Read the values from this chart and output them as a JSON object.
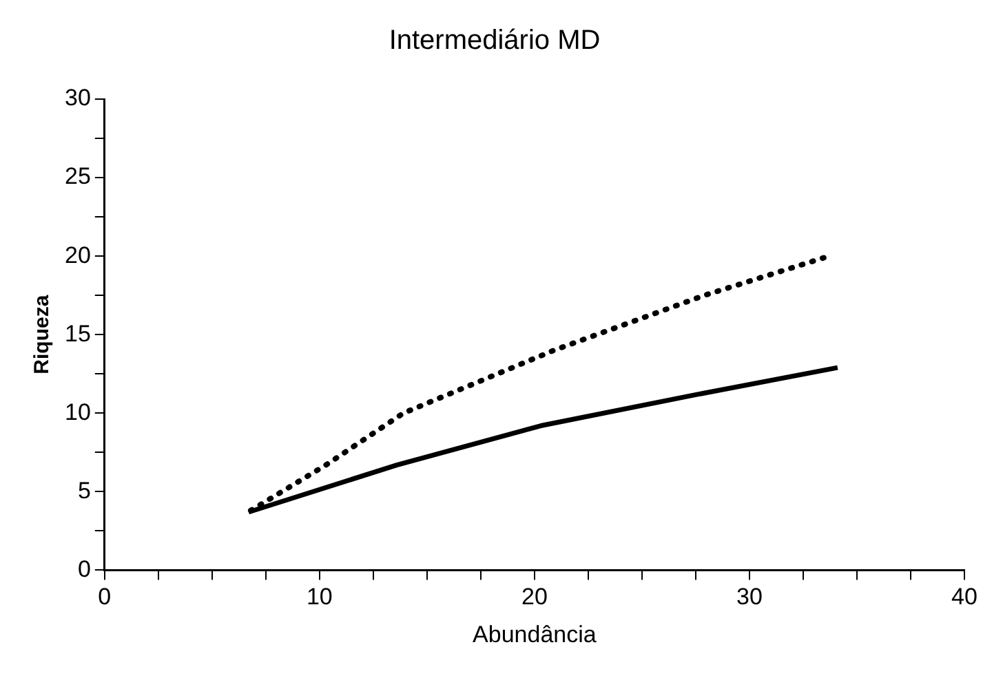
{
  "chart_data": {
    "type": "line",
    "title": "Intermediário MD",
    "xlabel": "Abundância",
    "ylabel": "Riqueza",
    "xlim": [
      0,
      40
    ],
    "ylim": [
      0,
      30
    ],
    "xticks": [
      0,
      {
        "value": 2.5,
        "label": null
      },
      {
        "value": 5,
        "label": null
      },
      {
        "value": 7.5,
        "label": null
      },
      10,
      {
        "value": 12.5,
        "label": null
      },
      {
        "value": 15,
        "label": null
      },
      {
        "value": 17.5,
        "label": null
      },
      20,
      {
        "value": 22.5,
        "label": null
      },
      {
        "value": 25,
        "label": null
      },
      {
        "value": 27.5,
        "label": null
      },
      30,
      {
        "value": 32.5,
        "label": null
      },
      {
        "value": 35,
        "label": null
      },
      {
        "value": 37.5,
        "label": null
      },
      40
    ],
    "yticks": [
      0,
      {
        "value": 2.5,
        "label": null
      },
      5,
      {
        "value": 7.5,
        "label": null
      },
      10,
      {
        "value": 12.5,
        "label": null
      },
      15,
      {
        "value": 17.5,
        "label": null
      },
      20,
      {
        "value": 22.5,
        "label": null
      },
      25,
      {
        "value": 27.5,
        "label": null
      },
      30
    ],
    "grid": false,
    "legend": false,
    "marker": "none",
    "series": [
      {
        "color": "#000000",
        "line_style": "solid",
        "x": [
          6.7,
          13.6,
          20.3,
          27.6,
          34.1
        ],
        "values": [
          3.7,
          6.7,
          9.2,
          11.2,
          12.9
        ]
      },
      {
        "color": "#000000",
        "line_style": "dotted",
        "x": [
          6.8,
          10.3,
          13.9,
          20.9,
          27.9,
          33.7
        ],
        "values": [
          3.8,
          6.7,
          10.0,
          14.0,
          17.5,
          20.0
        ]
      }
    ]
  }
}
